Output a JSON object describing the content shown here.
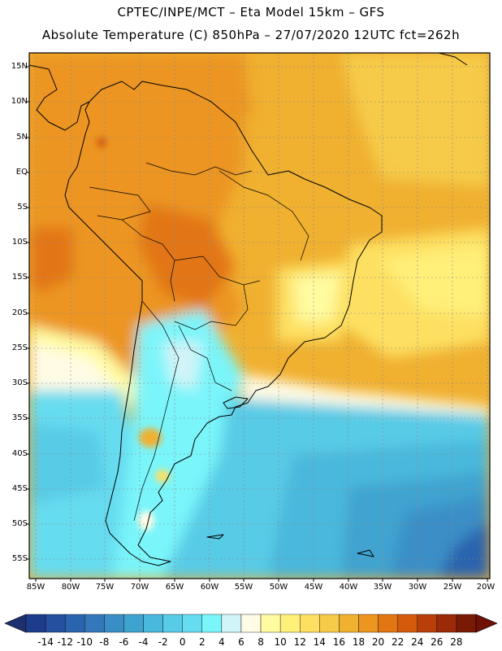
{
  "header": {
    "line1": "CPTEC/INPE/MCT –  Eta Model 15km – GFS",
    "line2": "Absolute Temperature (C) 850hPa – 27/07/2020 12UTC fct=262h"
  },
  "map": {
    "variable": "Absolute Temperature (C) 850hPa",
    "region": "South America",
    "lat_labels": [
      "15N",
      "10N",
      "5N",
      "EQ",
      "5S",
      "10S",
      "15S",
      "20S",
      "25S",
      "30S",
      "35S",
      "40S",
      "45S",
      "50S",
      "55S"
    ],
    "lon_labels": [
      "85W",
      "80W",
      "75W",
      "70W",
      "65W",
      "60W",
      "55W",
      "50W",
      "45W",
      "40W",
      "35W",
      "30W",
      "25W",
      "20W"
    ]
  },
  "colorbar": {
    "labels": [
      "-14",
      "-12",
      "-10",
      "-8",
      "-6",
      "-4",
      "-2",
      "0",
      "2",
      "4",
      "6",
      "8",
      "10",
      "12",
      "14",
      "16",
      "18",
      "20",
      "22",
      "24",
      "26",
      "28"
    ],
    "colors": [
      "#1e3c8c",
      "#24509f",
      "#2b64ae",
      "#3478bb",
      "#3a8ec6",
      "#3fa3d0",
      "#48b8dc",
      "#58cbe6",
      "#66dcf0",
      "#7af5fa",
      "#d0f4f8",
      "#fffbe5",
      "#fffba0",
      "#fff07a",
      "#fde062",
      "#f6cb4a",
      "#f0b030",
      "#ec9520",
      "#e27612",
      "#d45a0c",
      "#b83f0a",
      "#9a2a08",
      "#7a1a06"
    ],
    "under_color": "#1e3070",
    "over_color": "#6e1006"
  }
}
